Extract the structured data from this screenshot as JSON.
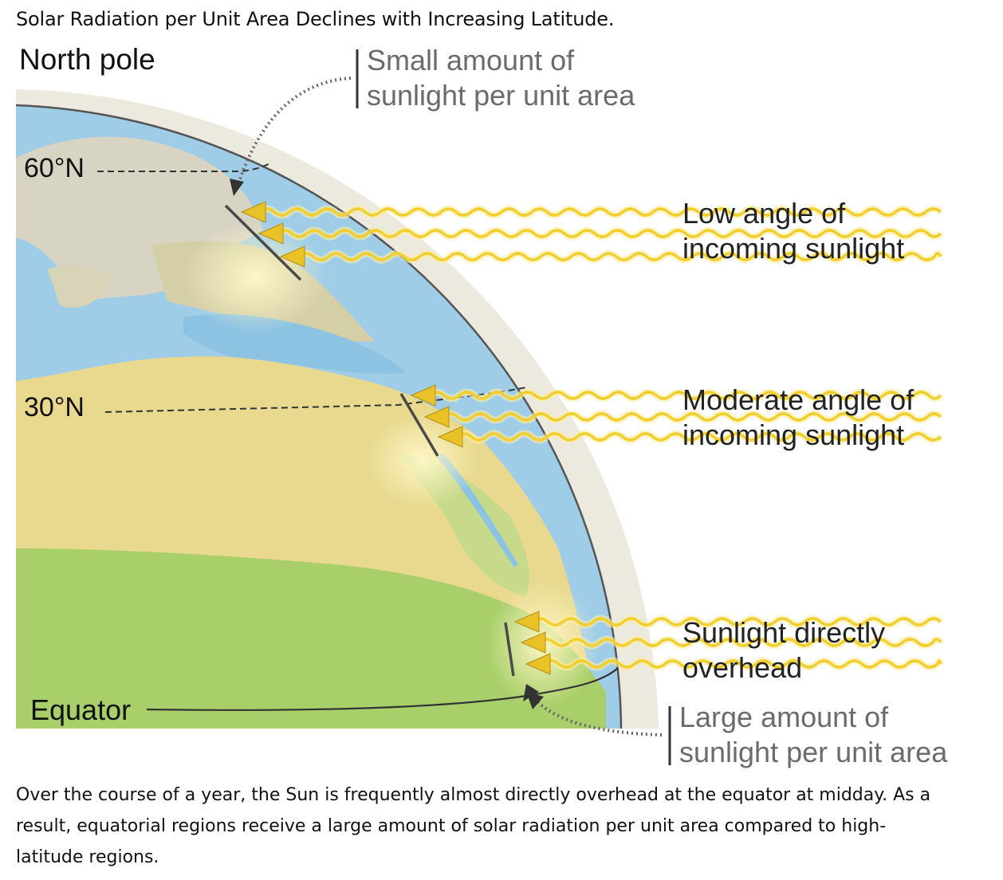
{
  "title": "Solar Radiation per Unit Area Declines with Increasing Latitude.",
  "labels": {
    "north_pole": "North pole",
    "lat_60": "60°N",
    "lat_30": "30°N",
    "equator": "Equator",
    "small_amount": [
      "Small amount of",
      "sunlight per unit area"
    ],
    "low_angle": [
      "Low angle of",
      "incoming sunlight"
    ],
    "moderate_angle": [
      "Moderate angle of",
      "incoming sunlight"
    ],
    "directly_overhead": [
      "Sunlight directly",
      "overhead"
    ],
    "large_amount": [
      "Large amount of",
      "sunlight per unit area"
    ]
  },
  "caption": [
    "Over the course of a year, the Sun is frequently almost directly overhead at the equator at midday. As a",
    "result, equatorial regions receive a large amount of solar radiation per unit area compared to high-",
    "latitude regions."
  ],
  "colors": {
    "ocean": "#9fcde8",
    "land_desert": "#e8d98f",
    "land_green": "#a9cf6a",
    "land_north": "#d8d4c4",
    "atmosphere": "#ece9df",
    "sun_ray": "#f2cf2e",
    "arrow": "#e8c226"
  }
}
